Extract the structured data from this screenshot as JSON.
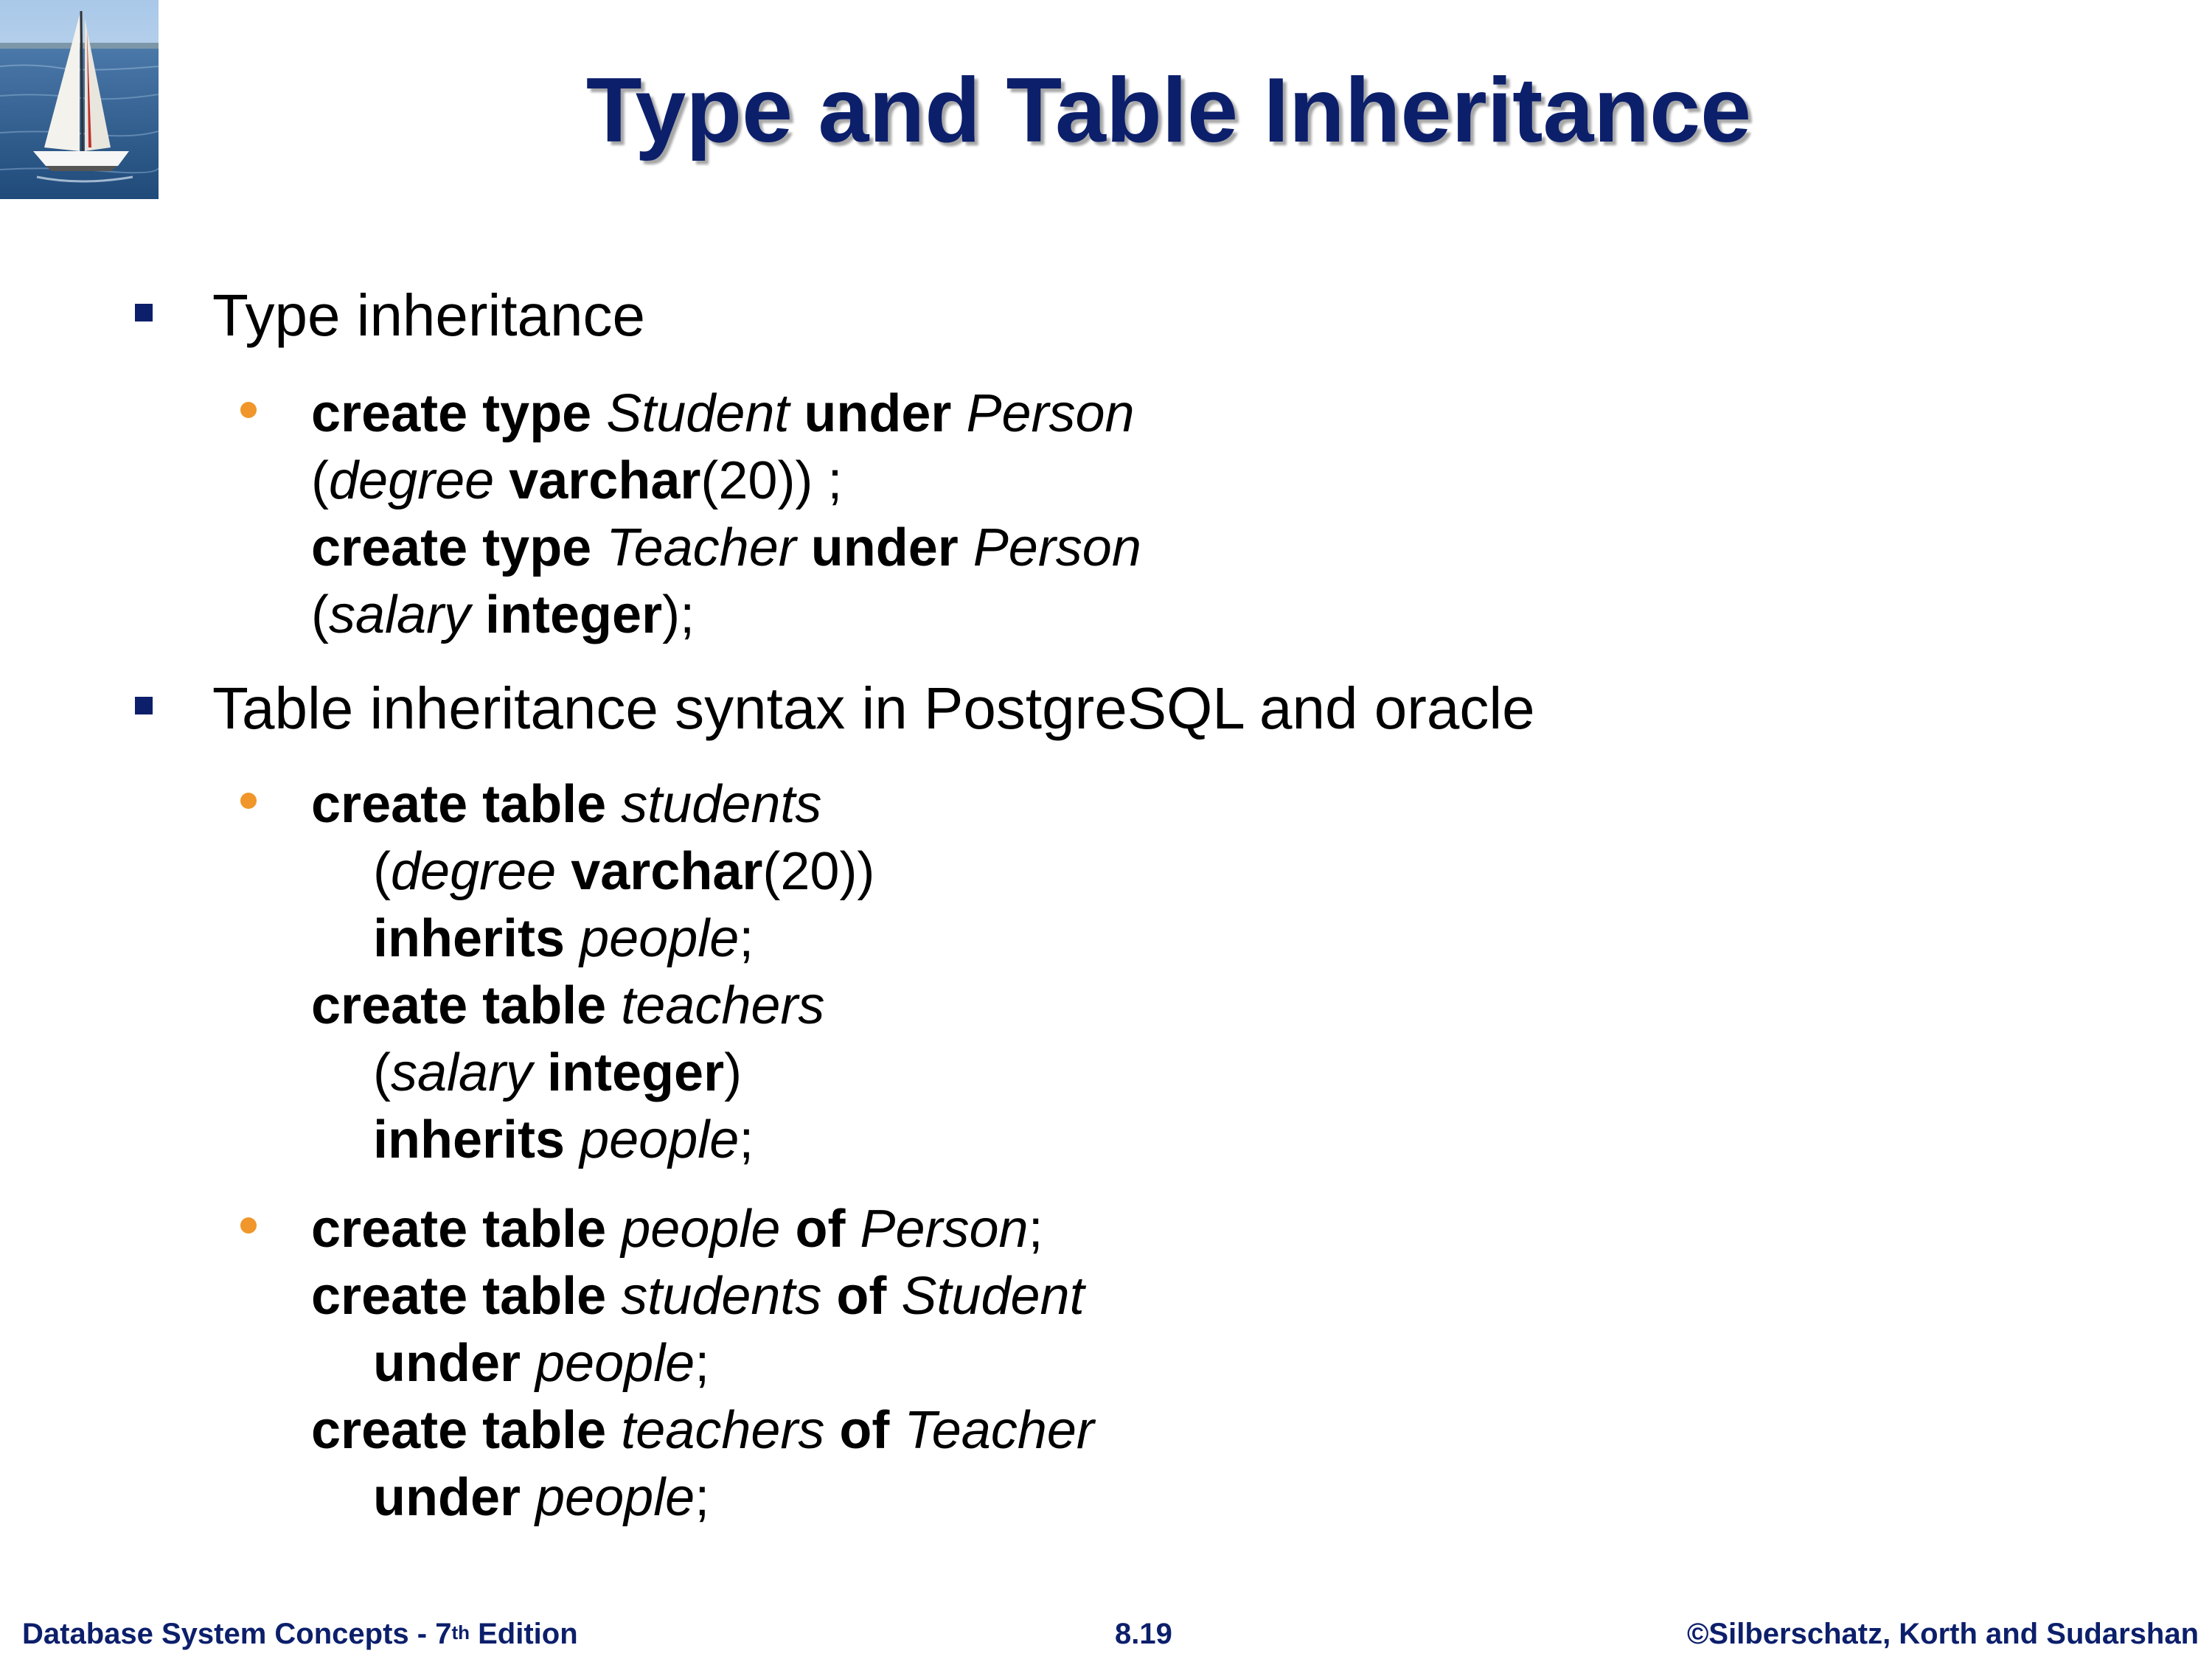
{
  "title": "Type and Table Inheritance",
  "bullets": [
    {
      "heading": "Type inheritance",
      "items": [
        {
          "lines": [
            {
              "indent": false,
              "spans": [
                {
                  "t": "create type ",
                  "b": true
                },
                {
                  "t": "Student",
                  "i": true
                },
                {
                  "t": " under ",
                  "b": true
                },
                {
                  "t": "Person",
                  "i": true
                }
              ]
            },
            {
              "indent": false,
              "spans": [
                {
                  "t": "("
                },
                {
                  "t": "degree",
                  "i": true
                },
                {
                  "t": " varchar",
                  "b": true
                },
                {
                  "t": "(20)) ;"
                }
              ]
            },
            {
              "indent": false,
              "spans": [
                {
                  "t": "create type ",
                  "b": true
                },
                {
                  "t": "Teacher",
                  "i": true
                },
                {
                  "t": " under ",
                  "b": true
                },
                {
                  "t": "Person",
                  "i": true
                }
              ]
            },
            {
              "indent": false,
              "spans": [
                {
                  "t": "("
                },
                {
                  "t": "salary",
                  "i": true
                },
                {
                  "t": " integer",
                  "b": true
                },
                {
                  "t": ");"
                }
              ]
            }
          ]
        }
      ]
    },
    {
      "heading": "Table inheritance syntax in PostgreSQL and oracle",
      "items": [
        {
          "lines": [
            {
              "indent": false,
              "spans": [
                {
                  "t": "create table ",
                  "b": true
                },
                {
                  "t": "students",
                  "i": true
                }
              ]
            },
            {
              "indent": true,
              "spans": [
                {
                  "t": "("
                },
                {
                  "t": "degree",
                  "i": true
                },
                {
                  "t": " varchar",
                  "b": true
                },
                {
                  "t": "(20))"
                }
              ]
            },
            {
              "indent": true,
              "spans": [
                {
                  "t": "inherits ",
                  "b": true
                },
                {
                  "t": "people",
                  "i": true
                },
                {
                  "t": ";"
                }
              ]
            },
            {
              "indent": false,
              "spans": [
                {
                  "t": "create table ",
                  "b": true
                },
                {
                  "t": "teachers",
                  "i": true
                }
              ]
            },
            {
              "indent": true,
              "spans": [
                {
                  "t": "("
                },
                {
                  "t": "salary",
                  "i": true
                },
                {
                  "t": " integer",
                  "b": true
                },
                {
                  "t": ")"
                }
              ]
            },
            {
              "indent": true,
              "spans": [
                {
                  "t": "inherits ",
                  "b": true
                },
                {
                  "t": "people",
                  "i": true
                },
                {
                  "t": ";"
                }
              ]
            }
          ]
        },
        {
          "lines": [
            {
              "indent": false,
              "spans": [
                {
                  "t": "create table ",
                  "b": true
                },
                {
                  "t": "people",
                  "i": true
                },
                {
                  "t": " of ",
                  "b": true
                },
                {
                  "t": "Person",
                  "i": true
                },
                {
                  "t": ";"
                }
              ]
            },
            {
              "indent": false,
              "spans": [
                {
                  "t": "create table ",
                  "b": true
                },
                {
                  "t": "students",
                  "i": true
                },
                {
                  "t": " of ",
                  "b": true
                },
                {
                  "t": "Student",
                  "i": true
                }
              ]
            },
            {
              "indent": true,
              "spans": [
                {
                  "t": "under ",
                  "b": true
                },
                {
                  "t": "people",
                  "i": true
                },
                {
                  "t": ";"
                }
              ]
            },
            {
              "indent": false,
              "spans": [
                {
                  "t": "create table ",
                  "b": true
                },
                {
                  "t": "teachers",
                  "i": true
                },
                {
                  "t": " of ",
                  "b": true
                },
                {
                  "t": "Teacher",
                  "i": true
                }
              ]
            },
            {
              "indent": true,
              "spans": [
                {
                  "t": "under ",
                  "b": true
                },
                {
                  "t": "people",
                  "i": true
                },
                {
                  "t": ";"
                }
              ]
            }
          ]
        }
      ]
    }
  ],
  "footer": {
    "left_main": "Database System Concepts - 7",
    "left_sup": "th",
    "left_tail": " Edition",
    "center": "8.19",
    "right": "©Silberschatz, Korth and Sudarshan"
  },
  "colors": {
    "title": "#0c1f6b",
    "bullet_square": "#0c1f6b",
    "bullet_dot": "#f0962a",
    "footer": "#0c1f6b"
  },
  "icons": {
    "logo": "sailboat-logo-icon",
    "level1_bullet": "square-bullet-icon",
    "level2_bullet": "dot-bullet-icon"
  }
}
